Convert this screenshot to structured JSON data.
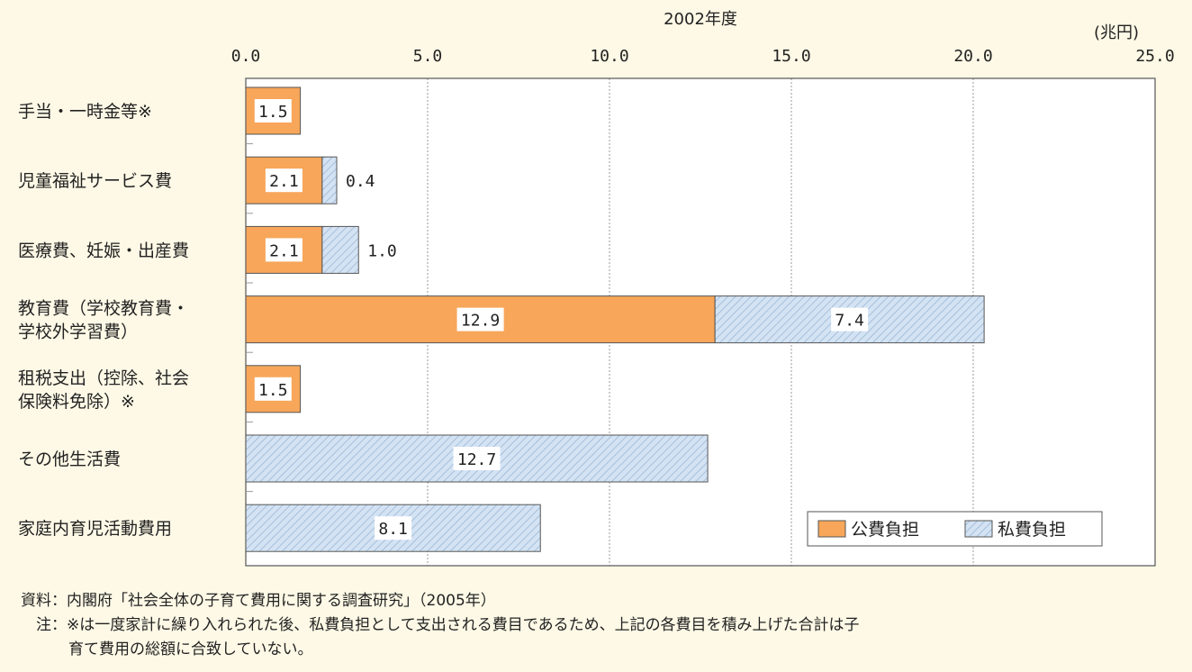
{
  "chart_data": {
    "type": "bar",
    "orientation": "horizontal",
    "stacked": true,
    "title": "2002年度",
    "unit_label": "(兆円)",
    "xlim": [
      0,
      25
    ],
    "x_ticks": [
      "0.0",
      "5.0",
      "10.0",
      "15.0",
      "20.0",
      "25.0"
    ],
    "grid": true,
    "legend_position": "bottom-right",
    "categories": [
      [
        "手当・一時金等※"
      ],
      [
        "児童福祉サービス費"
      ],
      [
        "医療費、妊娠・出産費"
      ],
      [
        "教育費（学校教育費・",
        "学校外学習費）"
      ],
      [
        "租税支出（控除、社会",
        "保険料免除）※"
      ],
      [
        "その他生活費"
      ],
      [
        "家庭内育児活動費用"
      ]
    ],
    "series": [
      {
        "name": "公費負担",
        "color": "#f7a65a",
        "pattern": "solid",
        "values": [
          1.5,
          2.1,
          2.1,
          12.9,
          1.5,
          null,
          null
        ],
        "labels": [
          "1.5",
          "2.1",
          "2.1",
          "12.9",
          "1.5",
          "",
          ""
        ]
      },
      {
        "name": "私費負担",
        "color": "#c9dcf0",
        "pattern": "diagonal-hatch",
        "values": [
          null,
          0.4,
          1.0,
          7.4,
          null,
          12.7,
          8.1
        ],
        "labels": [
          "",
          "0.4",
          "1.0",
          "7.4",
          "",
          "12.7",
          "8.1"
        ]
      }
    ]
  },
  "notes": {
    "source_prefix": "資料：",
    "source_text": "内閣府「社会全体の子育て費用に関する調査研究」（2005年）",
    "note_prefix": "注：",
    "note_line1": "※は一度家計に繰り入れられた後、私費負担として支出される費目であるため、上記の各費目を積み上げた合計は子",
    "note_line2": "育て費用の総額に合致していない。"
  }
}
